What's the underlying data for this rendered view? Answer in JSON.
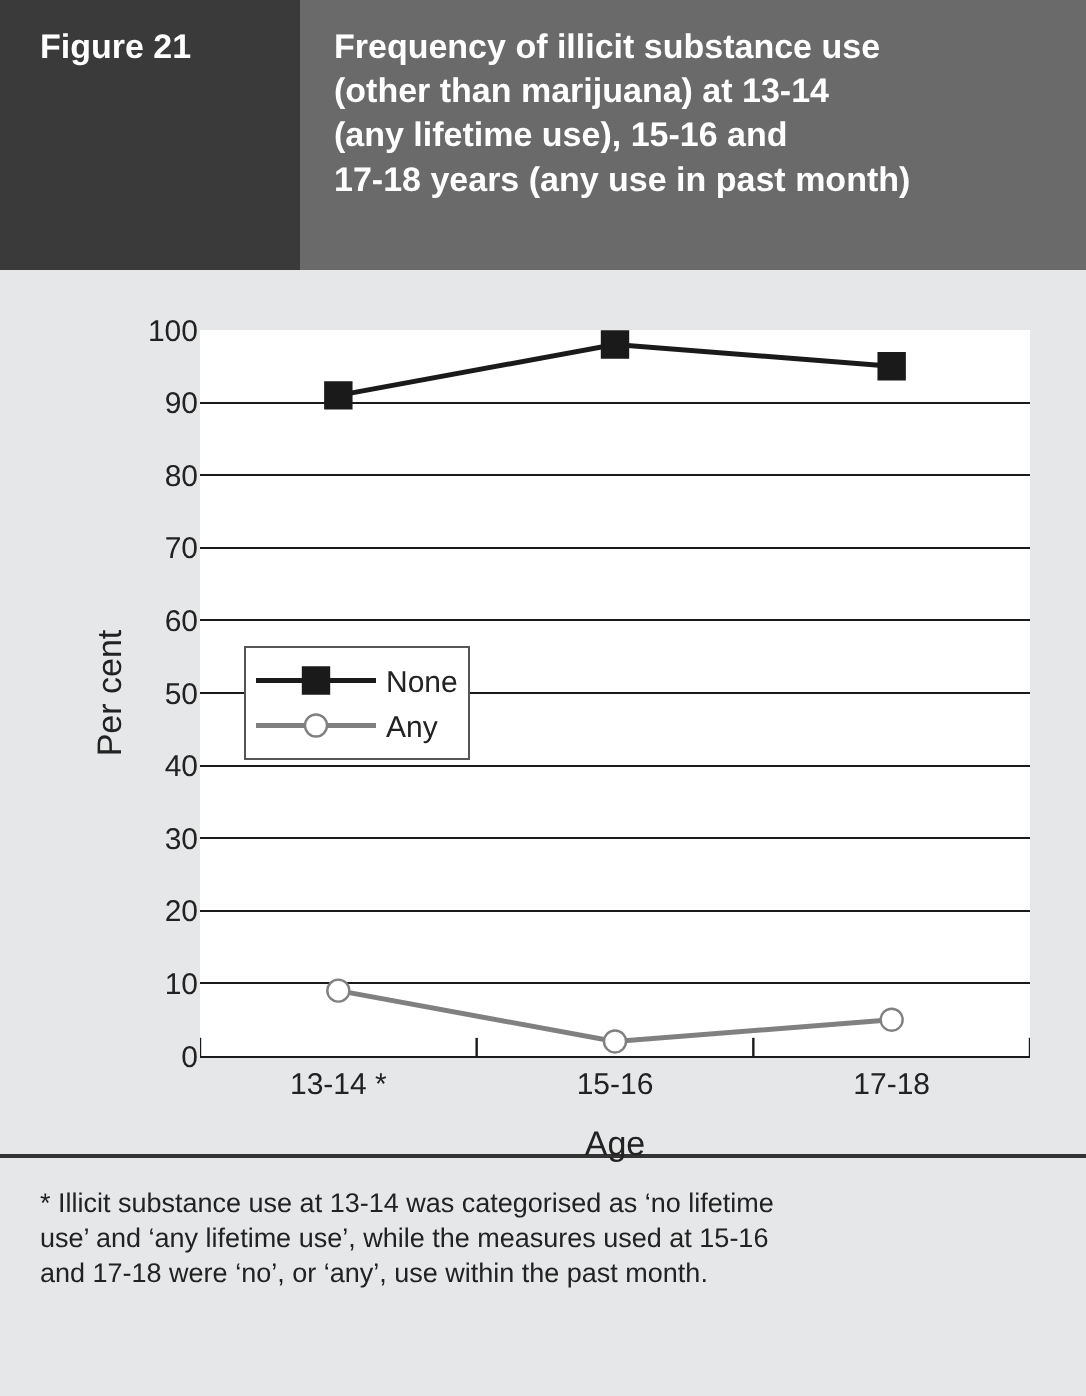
{
  "chart_data": {
    "type": "line",
    "title": "Frequency of illicit substance use\n(other than marijuana) at 13-14\n(any lifetime use), 15-16 and\n17-18 years (any use in past month)",
    "xlabel": "Age",
    "ylabel": "Per cent",
    "categories": [
      "13-14 *",
      "15-16",
      "17-18"
    ],
    "series": [
      {
        "name": "None",
        "color": "#1a1a1a",
        "values": [
          91,
          98,
          95
        ],
        "marker": "square"
      },
      {
        "name": "Any",
        "color": "#808080",
        "values": [
          9,
          2,
          5
        ],
        "marker": "circle"
      }
    ],
    "ylim": [
      0,
      100
    ],
    "yticks": [
      0,
      10,
      20,
      30,
      40,
      50,
      60,
      70,
      80,
      90,
      100
    ],
    "grid": "y",
    "legend": "left",
    "line_style": "solid",
    "annotations": [
      "Figure 21",
      "* Illicit substance use at 13-14 was categorised as ‘no lifetime\nuse’ and ‘any lifetime use’, while the measures used at 15-16\nand 17-18 were ‘no’, or ‘any’, use within the past month."
    ]
  }
}
